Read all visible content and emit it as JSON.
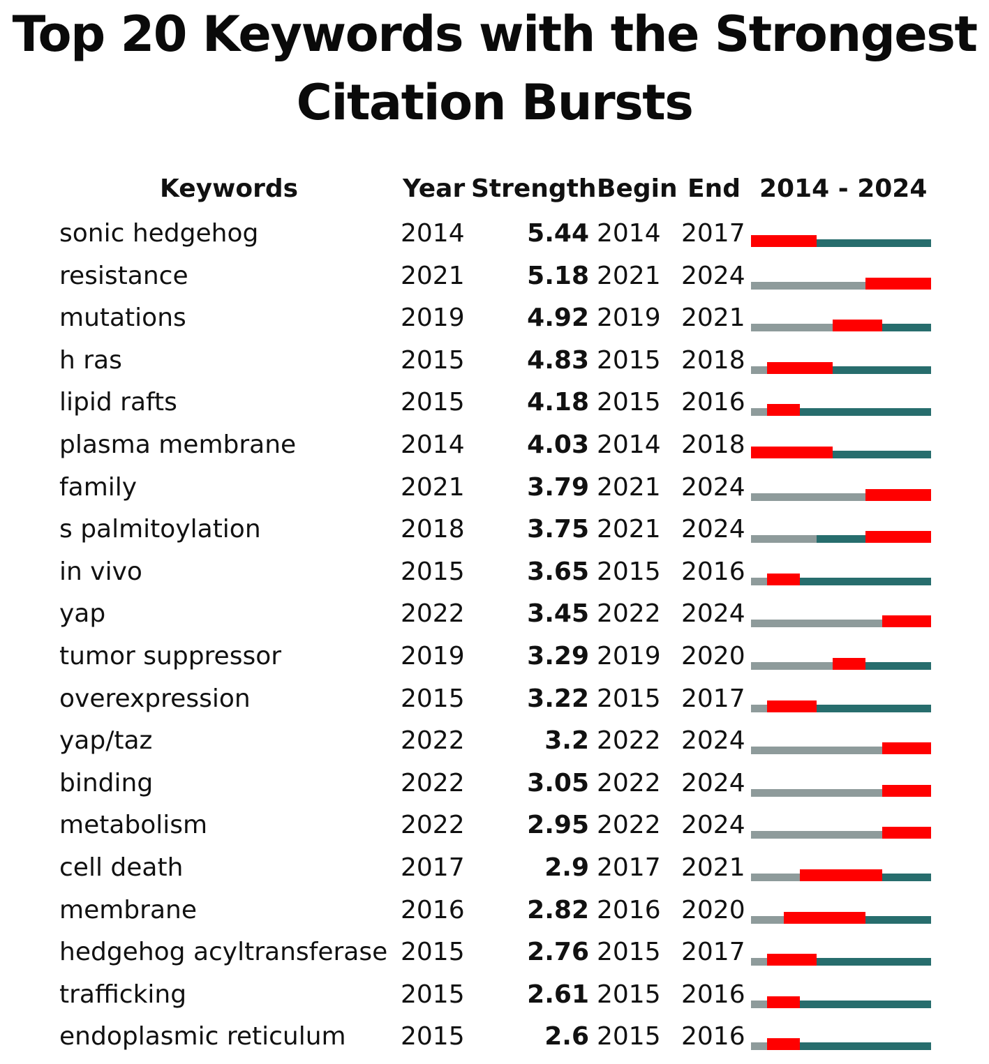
{
  "title_line1": "Top 20 Keywords with the Strongest",
  "title_line2": "Citation Bursts",
  "headers": {
    "keywords": "Keywords",
    "year": "Year",
    "strength": "Strength",
    "begin": "Begin",
    "end": "End",
    "range": "2014 - 2024"
  },
  "colors": {
    "burst": "#ff0000",
    "before_appearance": "#8e9b9b",
    "active": "#276d6d"
  },
  "chart_data": {
    "type": "table",
    "title": "Top 20 Keywords with the Strongest Citation Bursts",
    "range_start": 2014,
    "range_end": 2024,
    "columns": [
      "Keywords",
      "Year",
      "Strength",
      "Begin",
      "End",
      "2014 - 2024"
    ],
    "rows": [
      {
        "keyword": "sonic hedgehog",
        "year": "2014",
        "strength": "5.44",
        "begin": "2014",
        "end": "2017"
      },
      {
        "keyword": "resistance",
        "year": "2021",
        "strength": "5.18",
        "begin": "2021",
        "end": "2024"
      },
      {
        "keyword": "mutations",
        "year": "2019",
        "strength": "4.92",
        "begin": "2019",
        "end": "2021"
      },
      {
        "keyword": "h ras",
        "year": "2015",
        "strength": "4.83",
        "begin": "2015",
        "end": "2018"
      },
      {
        "keyword": "lipid rafts",
        "year": "2015",
        "strength": "4.18",
        "begin": "2015",
        "end": "2016"
      },
      {
        "keyword": "plasma membrane",
        "year": "2014",
        "strength": "4.03",
        "begin": "2014",
        "end": "2018"
      },
      {
        "keyword": "family",
        "year": "2021",
        "strength": "3.79",
        "begin": "2021",
        "end": "2024"
      },
      {
        "keyword": "s palmitoylation",
        "year": "2018",
        "strength": "3.75",
        "begin": "2021",
        "end": "2024"
      },
      {
        "keyword": "in vivo",
        "year": "2015",
        "strength": "3.65",
        "begin": "2015",
        "end": "2016"
      },
      {
        "keyword": "yap",
        "year": "2022",
        "strength": "3.45",
        "begin": "2022",
        "end": "2024"
      },
      {
        "keyword": "tumor suppressor",
        "year": "2019",
        "strength": "3.29",
        "begin": "2019",
        "end": "2020"
      },
      {
        "keyword": "overexpression",
        "year": "2015",
        "strength": "3.22",
        "begin": "2015",
        "end": "2017"
      },
      {
        "keyword": "yap/taz",
        "year": "2022",
        "strength": "3.2",
        "begin": "2022",
        "end": "2024"
      },
      {
        "keyword": "binding",
        "year": "2022",
        "strength": "3.05",
        "begin": "2022",
        "end": "2024"
      },
      {
        "keyword": "metabolism",
        "year": "2022",
        "strength": "2.95",
        "begin": "2022",
        "end": "2024"
      },
      {
        "keyword": "cell death",
        "year": "2017",
        "strength": "2.9",
        "begin": "2017",
        "end": "2021"
      },
      {
        "keyword": "membrane",
        "year": "2016",
        "strength": "2.82",
        "begin": "2016",
        "end": "2020"
      },
      {
        "keyword": "hedgehog acyltransferase",
        "year": "2015",
        "strength": "2.76",
        "begin": "2015",
        "end": "2017"
      },
      {
        "keyword": "trafficking",
        "year": "2015",
        "strength": "2.61",
        "begin": "2015",
        "end": "2016"
      },
      {
        "keyword": "endoplasmic reticulum",
        "year": "2015",
        "strength": "2.6",
        "begin": "2015",
        "end": "2016"
      }
    ]
  }
}
